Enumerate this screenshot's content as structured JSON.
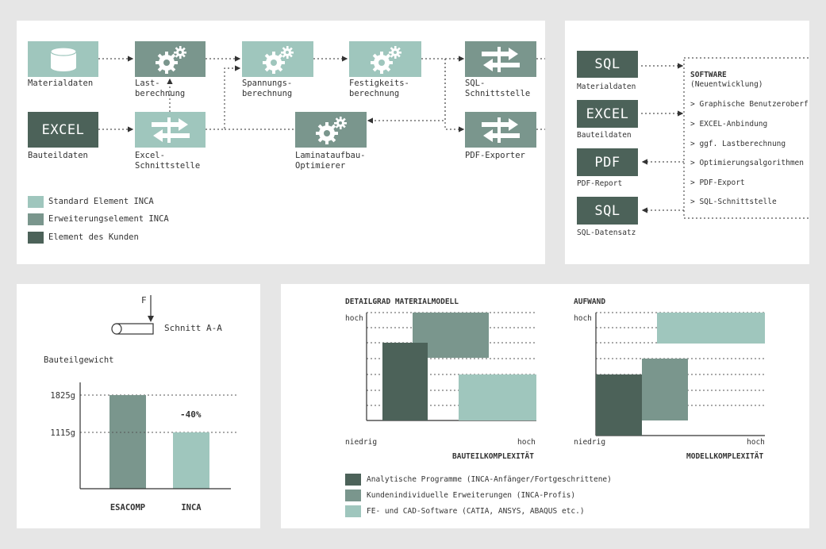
{
  "flow": {
    "materialdaten": "Materialdaten",
    "last_line1": "Last-",
    "last_line2": "berechnung",
    "spannung_line1": "Spannungs-",
    "spannung_line2": "berechnung",
    "festigkeit_line1": "Festigkeits-",
    "festigkeit_line2": "berechnung",
    "sql_line1": "SQL-",
    "sql_line2": "Schnittstelle",
    "excel_box": "EXCEL",
    "bauteildaten": "Bauteildaten",
    "excel_if_line1": "Excel-",
    "excel_if_line2": "Schnittstelle",
    "laminat_line1": "Laminataufbau-",
    "laminat_line2": "Optimierer",
    "pdf_exporter": "PDF-Exporter",
    "legend": [
      "Standard Element INCA",
      "Erweiterungselement INCA",
      "Element des Kunden"
    ]
  },
  "software": {
    "sql_box": "SQL",
    "sql_label": "Materialdaten",
    "excel_box": "EXCEL",
    "excel_label": "Bauteildaten",
    "pdf_box": "PDF",
    "pdf_label": "PDF-Report",
    "sql2_box": "SQL",
    "sql2_label": "SQL-Datensatz",
    "title": "SOFTWARE",
    "subtitle": "(Neuentwicklung)",
    "items": [
      "> Graphische Benutzeroberf",
      "> EXCEL-Anbindung",
      "> ggf. Lastberechnung",
      "> Optimierungsalgorithmen",
      "> PDF-Export",
      "> SQL-Schnittstelle"
    ]
  },
  "weight": {
    "force": "F",
    "section": "Schnitt A-A",
    "ylabel": "Bauteilgewicht",
    "bars": [
      {
        "name": "ESACOMP",
        "value": 1825,
        "label": "1825g"
      },
      {
        "name": "INCA",
        "value": 1115,
        "label": "1115g"
      }
    ],
    "reduction": "-40%"
  },
  "complexity": {
    "chart1_title": "DETAILGRAD MATERIALMODELL",
    "chart1_xlabel": "BAUTEILKOMPLEXITÄT",
    "chart2_title": "AUFWAND",
    "chart2_xlabel": "MODELLKOMPLEXITÄT",
    "high": "hoch",
    "low": "niedrig",
    "legend": [
      "Analytische Programme (INCA-Anfänger/Fortgeschrittene)",
      "Kundenindividuelle Erweiterungen (INCA-Profis)",
      "FE- und CAD-Software (CATIA, ANSYS, ABAQUS etc.)"
    ]
  },
  "colors": {
    "standard": "#9fc6bd",
    "extension": "#7a968d",
    "customer": "#4c6259"
  }
}
